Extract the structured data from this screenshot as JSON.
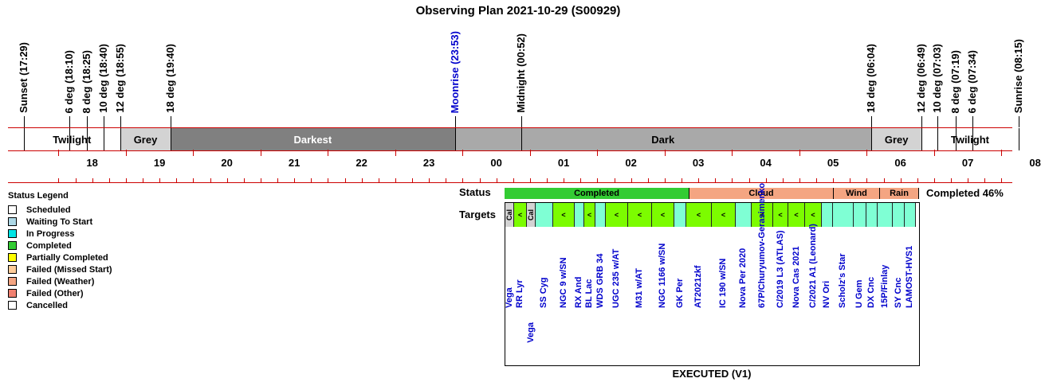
{
  "title": "Observing Plan 2021-10-29 (S00929)",
  "events": [
    {
      "label": "Sunset (17:29)",
      "color": "#000000"
    },
    {
      "label": "6 deg (18:10)",
      "color": "#000000"
    },
    {
      "label": "8 deg (18:25)",
      "color": "#000000"
    },
    {
      "label": "10 deg (18:40)",
      "color": "#000000"
    },
    {
      "label": "12 deg (18:55)",
      "color": "#000000"
    },
    {
      "label": "18 deg (19:40)",
      "color": "#000000"
    },
    {
      "label": "Moonrise (23:53)",
      "color": "#0000cc"
    },
    {
      "label": "Midnight (00:52)",
      "color": "#000000"
    },
    {
      "label": "18 deg (06:04)",
      "color": "#000000"
    },
    {
      "label": "12 deg (06:49)",
      "color": "#000000"
    },
    {
      "label": "10 deg (07:03)",
      "color": "#000000"
    },
    {
      "label": "8 deg (07:19)",
      "color": "#000000"
    },
    {
      "label": "6 deg (07:34)",
      "color": "#000000"
    },
    {
      "label": "Sunrise (08:15)",
      "color": "#000000"
    }
  ],
  "segments": [
    {
      "label": "Twilight",
      "color": "#ffffff",
      "text_color": "#000000"
    },
    {
      "label": "Grey",
      "color": "#d3d3d3",
      "text_color": "#000000"
    },
    {
      "label": "Darkest",
      "color": "#808080",
      "text_color": "#ffffff"
    },
    {
      "label": "Dark",
      "color": "#a9a9a9",
      "text_color": "#000000"
    },
    {
      "label": "Grey",
      "color": "#d3d3d3",
      "text_color": "#000000"
    },
    {
      "label": "Twilight",
      "color": "#ffffff",
      "text_color": "#000000"
    }
  ],
  "hours": [
    "18",
    "19",
    "20",
    "21",
    "22",
    "23",
    "00",
    "01",
    "02",
    "03",
    "04",
    "05",
    "06",
    "07",
    "08"
  ],
  "legend": {
    "title": "Status Legend",
    "items": [
      {
        "label": "Scheduled",
        "color": "#ffffff"
      },
      {
        "label": "Waiting To Start",
        "color": "#add8e6"
      },
      {
        "label": "In Progress",
        "color": "#00e5e5"
      },
      {
        "label": "Completed",
        "color": "#33cc33"
      },
      {
        "label": "Partially Completed",
        "color": "#ffff00"
      },
      {
        "label": "Failed (Missed Start)",
        "color": "#ffcc99"
      },
      {
        "label": "Failed (Weather)",
        "color": "#f4a582"
      },
      {
        "label": "Failed (Other)",
        "color": "#f08070"
      },
      {
        "label": "Cancelled",
        "color": "#ffffff"
      }
    ]
  },
  "status": {
    "label": "Status",
    "segments": [
      {
        "label": "Completed",
        "color": "#33cc33"
      },
      {
        "label": "Cloud",
        "color": "#f4a582"
      },
      {
        "label": "Wind",
        "color": "#f4a582"
      },
      {
        "label": "Rain",
        "color": "#f4a582"
      }
    ],
    "summary": "Completed 46%"
  },
  "targets_label": "Targets",
  "targets": [
    {
      "name": "Vega",
      "mark": "Cal",
      "color": "#d3d3d3",
      "row": 0
    },
    {
      "name": "RR Lyr",
      "mark": "<",
      "color": "#7cfc00",
      "row": 0
    },
    {
      "name": "Vega",
      "mark": "Cal",
      "color": "#d3d3d3",
      "row": 1
    },
    {
      "name": "SS Cyg",
      "mark": "",
      "color": "#7fffd4",
      "row": 0
    },
    {
      "name": "NGC 9 w/SN",
      "mark": "<",
      "color": "#7cfc00",
      "row": 0
    },
    {
      "name": "RX And",
      "mark": "",
      "color": "#7fffd4",
      "row": 0
    },
    {
      "name": "BL Lac",
      "mark": "<",
      "color": "#7cfc00",
      "row": 0
    },
    {
      "name": "WDS GRB 34",
      "mark": "",
      "color": "#7fffd4",
      "row": 0
    },
    {
      "name": "UGC 235 w/AT",
      "mark": "<",
      "color": "#7cfc00",
      "row": 0
    },
    {
      "name": "M31 w/AT",
      "mark": "<",
      "color": "#7cfc00",
      "row": 0
    },
    {
      "name": "NGC 1166 w/SN",
      "mark": "<",
      "color": "#7cfc00",
      "row": 0
    },
    {
      "name": "GK Per",
      "mark": "",
      "color": "#7fffd4",
      "row": 0
    },
    {
      "name": "AT2021zkf",
      "mark": "<",
      "color": "#7cfc00",
      "row": 0
    },
    {
      "name": "IC 190 w/SN",
      "mark": "<",
      "color": "#7cfc00",
      "row": 0
    },
    {
      "name": "Nova Per 2020",
      "mark": "",
      "color": "#7fffd4",
      "row": 0
    },
    {
      "name": "67P/Churyumov-Gerasimenko",
      "mark": "<",
      "color": "#7cfc00",
      "row": 0
    },
    {
      "name": "C/2019 L3 (ATLAS)",
      "mark": "<",
      "color": "#7cfc00",
      "row": 0
    },
    {
      "name": "Nova Cas 2021",
      "mark": "<",
      "color": "#7cfc00",
      "row": 0
    },
    {
      "name": "C/2021 A1 (Leonard)",
      "mark": "<",
      "color": "#7cfc00",
      "row": 0
    },
    {
      "name": "NV Ori",
      "mark": "",
      "color": "#7fffd4",
      "row": 0
    },
    {
      "name": "Scholz's Star",
      "mark": "",
      "color": "#7fffd4",
      "row": 0
    },
    {
      "name": "U Gem",
      "mark": "",
      "color": "#7fffd4",
      "row": 0
    },
    {
      "name": "DX Cnc",
      "mark": "",
      "color": "#7fffd4",
      "row": 0
    },
    {
      "name": "15P/Finlay",
      "mark": "",
      "color": "#7fffd4",
      "row": 0
    },
    {
      "name": "SY Cnc",
      "mark": "",
      "color": "#7fffd4",
      "row": 0
    },
    {
      "name": "LAMOST-HVS1",
      "mark": "",
      "color": "#7fffd4",
      "row": 0
    }
  ],
  "executed": "EXECUTED (V1)"
}
